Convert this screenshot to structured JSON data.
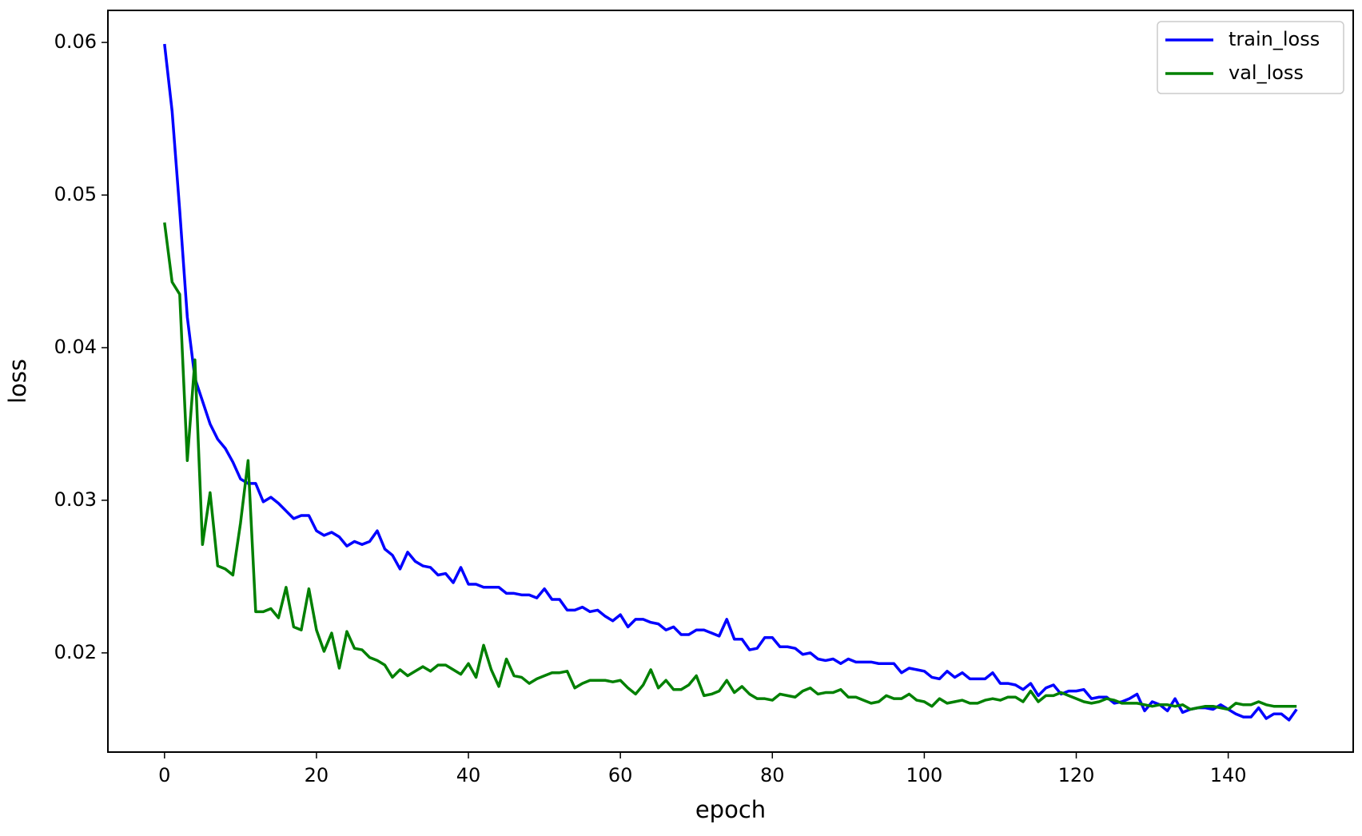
{
  "chart_data": {
    "type": "line",
    "xlabel": "epoch",
    "ylabel": "loss",
    "x": [
      0,
      1,
      2,
      3,
      4,
      5,
      6,
      7,
      8,
      9,
      10,
      11,
      12,
      13,
      14,
      15,
      16,
      17,
      18,
      19,
      20,
      21,
      22,
      23,
      24,
      25,
      26,
      27,
      28,
      29,
      30,
      31,
      32,
      33,
      34,
      35,
      36,
      37,
      38,
      39,
      40,
      41,
      42,
      43,
      44,
      45,
      46,
      47,
      48,
      49,
      50,
      51,
      52,
      53,
      54,
      55,
      56,
      57,
      58,
      59,
      60,
      61,
      62,
      63,
      64,
      65,
      66,
      67,
      68,
      69,
      70,
      71,
      72,
      73,
      74,
      75,
      76,
      77,
      78,
      79,
      80,
      81,
      82,
      83,
      84,
      85,
      86,
      87,
      88,
      89,
      90,
      91,
      92,
      93,
      94,
      95,
      96,
      97,
      98,
      99,
      100,
      101,
      102,
      103,
      104,
      105,
      106,
      107,
      108,
      109,
      110,
      111,
      112,
      113,
      114,
      115,
      116,
      117,
      118,
      119,
      120,
      121,
      122,
      123,
      124,
      125,
      126,
      127,
      128,
      129,
      130,
      131,
      132,
      133,
      134,
      135,
      136,
      137,
      138,
      139,
      140,
      141,
      142,
      143,
      144,
      145,
      146,
      147,
      148,
      149
    ],
    "series": [
      {
        "name": "train_loss",
        "color": "#0000ff",
        "values": [
          0.0599,
          0.0555,
          0.049,
          0.042,
          0.038,
          0.0365,
          0.035,
          0.034,
          0.0334,
          0.0325,
          0.0314,
          0.0311,
          0.0311,
          0.0299,
          0.0302,
          0.0298,
          0.0293,
          0.0288,
          0.029,
          0.029,
          0.028,
          0.0277,
          0.0279,
          0.0276,
          0.027,
          0.0273,
          0.0271,
          0.0273,
          0.028,
          0.0268,
          0.0264,
          0.0255,
          0.0266,
          0.026,
          0.0257,
          0.0256,
          0.0251,
          0.0252,
          0.0246,
          0.0256,
          0.0245,
          0.0245,
          0.0243,
          0.0243,
          0.0243,
          0.0239,
          0.0239,
          0.0238,
          0.0238,
          0.0236,
          0.0242,
          0.0235,
          0.0235,
          0.0228,
          0.0228,
          0.023,
          0.0227,
          0.0228,
          0.0224,
          0.0221,
          0.0225,
          0.0217,
          0.0222,
          0.0222,
          0.022,
          0.0219,
          0.0215,
          0.0217,
          0.0212,
          0.0212,
          0.0215,
          0.0215,
          0.0213,
          0.0211,
          0.0222,
          0.0209,
          0.0209,
          0.0202,
          0.0203,
          0.021,
          0.021,
          0.0204,
          0.0204,
          0.0203,
          0.0199,
          0.02,
          0.0196,
          0.0195,
          0.0196,
          0.0193,
          0.0196,
          0.0194,
          0.0194,
          0.0194,
          0.0193,
          0.0193,
          0.0193,
          0.0187,
          0.019,
          0.0189,
          0.0188,
          0.0184,
          0.0183,
          0.0188,
          0.0184,
          0.0187,
          0.0183,
          0.0183,
          0.0183,
          0.0187,
          0.018,
          0.018,
          0.0179,
          0.0176,
          0.018,
          0.0172,
          0.0177,
          0.0179,
          0.0173,
          0.0175,
          0.0175,
          0.0176,
          0.017,
          0.0171,
          0.0171,
          0.0167,
          0.0168,
          0.017,
          0.0173,
          0.0162,
          0.0168,
          0.0166,
          0.0162,
          0.017,
          0.0161,
          0.0163,
          0.0164,
          0.0164,
          0.0163,
          0.0166,
          0.0163,
          0.016,
          0.0158,
          0.0158,
          0.0164,
          0.0157,
          0.016,
          0.016,
          0.0156,
          0.0163
        ]
      },
      {
        "name": "val_loss",
        "color": "#008000",
        "values": [
          0.0482,
          0.0443,
          0.0435,
          0.0326,
          0.0392,
          0.0271,
          0.0305,
          0.0257,
          0.0255,
          0.0251,
          0.0285,
          0.0326,
          0.0227,
          0.0227,
          0.0229,
          0.0223,
          0.0243,
          0.0217,
          0.0215,
          0.0242,
          0.0215,
          0.0201,
          0.0213,
          0.019,
          0.0214,
          0.0203,
          0.0202,
          0.0197,
          0.0195,
          0.0192,
          0.0184,
          0.0189,
          0.0185,
          0.0188,
          0.0191,
          0.0188,
          0.0192,
          0.0192,
          0.0189,
          0.0186,
          0.0193,
          0.0184,
          0.0205,
          0.0189,
          0.0178,
          0.0196,
          0.0185,
          0.0184,
          0.018,
          0.0183,
          0.0185,
          0.0187,
          0.0187,
          0.0188,
          0.0177,
          0.018,
          0.0182,
          0.0182,
          0.0182,
          0.0181,
          0.0182,
          0.0177,
          0.0173,
          0.0179,
          0.0189,
          0.0177,
          0.0182,
          0.0176,
          0.0176,
          0.0179,
          0.0185,
          0.0172,
          0.0173,
          0.0175,
          0.0182,
          0.0174,
          0.0178,
          0.0173,
          0.017,
          0.017,
          0.0169,
          0.0173,
          0.0172,
          0.0171,
          0.0175,
          0.0177,
          0.0173,
          0.0174,
          0.0174,
          0.0176,
          0.0171,
          0.0171,
          0.0169,
          0.0167,
          0.0168,
          0.0172,
          0.017,
          0.017,
          0.0173,
          0.0169,
          0.0168,
          0.0165,
          0.017,
          0.0167,
          0.0168,
          0.0169,
          0.0167,
          0.0167,
          0.0169,
          0.017,
          0.0169,
          0.0171,
          0.0171,
          0.0168,
          0.0175,
          0.0168,
          0.0172,
          0.0172,
          0.0174,
          0.0172,
          0.017,
          0.0168,
          0.0167,
          0.0168,
          0.017,
          0.0169,
          0.0167,
          0.0167,
          0.0167,
          0.0166,
          0.0165,
          0.0166,
          0.0166,
          0.0165,
          0.0166,
          0.0163,
          0.0164,
          0.0165,
          0.0165,
          0.0164,
          0.0163,
          0.0167,
          0.0166,
          0.0166,
          0.0168,
          0.0166,
          0.0165,
          0.0165,
          0.0165,
          0.0165
        ]
      }
    ],
    "xlim": [
      -7.45,
      156.45
    ],
    "ylim": [
      0.0135,
      0.0621
    ],
    "xticks": [
      0,
      20,
      40,
      60,
      80,
      100,
      120,
      140
    ],
    "yticks": [
      0.02,
      0.03,
      0.04,
      0.05,
      0.06
    ],
    "legend": "upper right",
    "grid": false
  }
}
